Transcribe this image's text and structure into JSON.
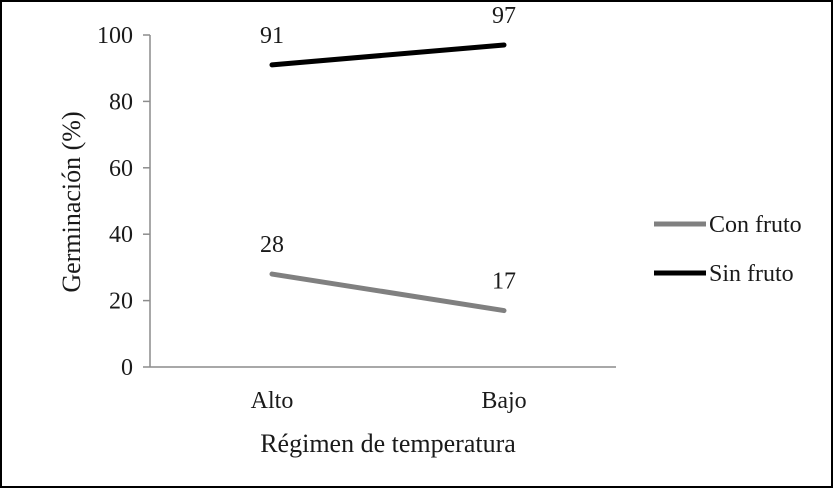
{
  "chart_data": {
    "type": "line",
    "title": "",
    "xlabel": "Régimen de temperatura",
    "ylabel": "Germinación (%)",
    "categories": [
      "Alto",
      "Bajo"
    ],
    "ylim": [
      0,
      100
    ],
    "yticks": [
      0,
      20,
      40,
      60,
      80,
      100
    ],
    "grid": false,
    "legend_position": "right",
    "series": [
      {
        "name": "Con fruto",
        "values": [
          28,
          17
        ],
        "data_labels": [
          "28",
          "17"
        ],
        "color": "#808080"
      },
      {
        "name": "Sin fruto",
        "values": [
          91,
          97
        ],
        "data_labels": [
          "91",
          "97"
        ],
        "color": "#000000"
      }
    ]
  }
}
